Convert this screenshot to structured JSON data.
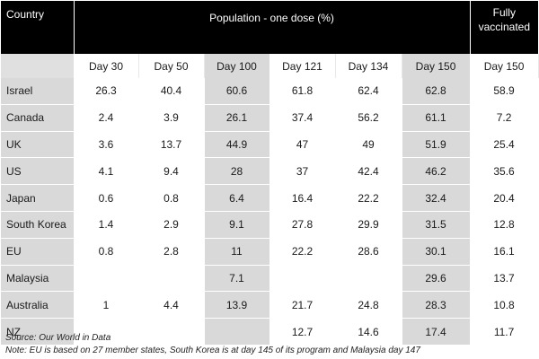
{
  "header": {
    "country": "Country",
    "population_one_dose": "Population - one dose (%)",
    "fully_line1": "Fully",
    "fully_line2": "vaccinated"
  },
  "subheader": [
    "Day 30",
    "Day 50",
    "Day 100",
    "Day 121",
    "Day 134",
    "Day 150",
    "Day 150"
  ],
  "rows": [
    {
      "country": "Israel",
      "values": [
        "26.3",
        "40.4",
        "60.6",
        "61.8",
        "62.4",
        "62.8",
        "58.9"
      ]
    },
    {
      "country": "Canada",
      "values": [
        "2.4",
        "3.9",
        "26.1",
        "37.4",
        "56.2",
        "61.1",
        "7.2"
      ]
    },
    {
      "country": "UK",
      "values": [
        "3.6",
        "13.7",
        "44.9",
        "47",
        "49",
        "51.9",
        "25.4"
      ]
    },
    {
      "country": "US",
      "values": [
        "4.1",
        "9.4",
        "28",
        "37",
        "42.4",
        "46.2",
        "35.6"
      ]
    },
    {
      "country": "Japan",
      "values": [
        "0.6",
        "0.8",
        "6.4",
        "16.4",
        "22.2",
        "32.4",
        "20.4"
      ]
    },
    {
      "country": "South Korea",
      "values": [
        "1.4",
        "2.9",
        "9.1",
        "27.8",
        "29.9",
        "31.5",
        "12.8"
      ]
    },
    {
      "country": "EU",
      "values": [
        "0.8",
        "2.8",
        "11",
        "22.2",
        "28.6",
        "30.1",
        "16.1"
      ]
    },
    {
      "country": "Malaysia",
      "values": [
        "",
        "",
        "7.1",
        "",
        "",
        "29.6",
        "13.7"
      ]
    },
    {
      "country": "Australia",
      "values": [
        "1",
        "4.4",
        "13.9",
        "21.7",
        "24.8",
        "28.3",
        "10.8"
      ]
    },
    {
      "country": "NZ",
      "values": [
        "",
        "",
        "",
        "12.7",
        "14.6",
        "17.4",
        "11.7"
      ]
    }
  ],
  "source": "Source: Our World in Data",
  "note": "Note: EU is based on 27 member states, South Korea is at day 145 of its program and Malaysia day 147"
}
